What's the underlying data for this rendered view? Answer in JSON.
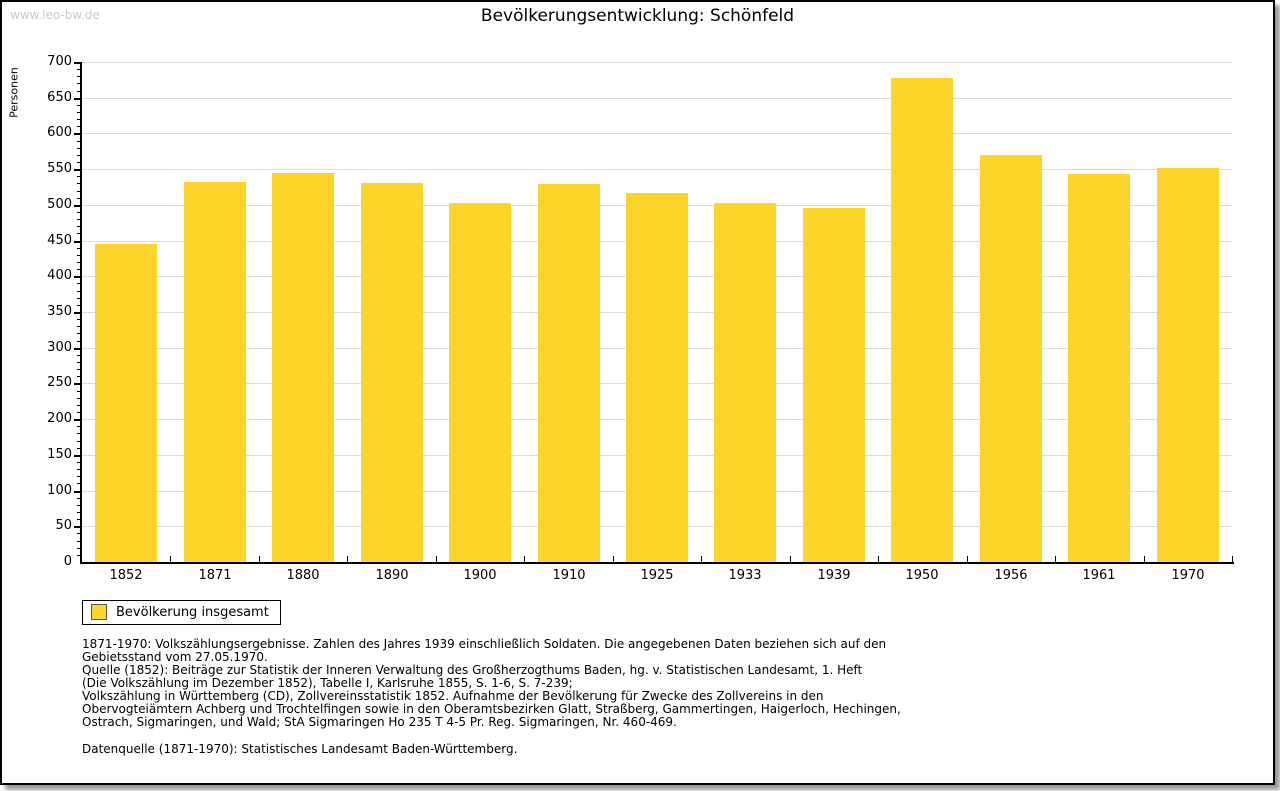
{
  "watermark": "www.leo-bw.de",
  "title": "Bevölkerungsentwicklung: Schönfeld",
  "chart_data": {
    "type": "bar",
    "title": "Bevölkerungsentwicklung: Schönfeld",
    "categories": [
      "1852",
      "1871",
      "1880",
      "1890",
      "1900",
      "1910",
      "1925",
      "1933",
      "1939",
      "1950",
      "1956",
      "1961",
      "1970"
    ],
    "values": [
      445,
      532,
      544,
      530,
      502,
      529,
      516,
      502,
      496,
      678,
      570,
      543,
      551
    ],
    "xlabel": "",
    "ylabel": "Personen",
    "ylim": [
      0,
      700
    ],
    "ytick_step": 50,
    "yminor_step": 10,
    "grid": true,
    "grid_color": "#dcdcdc",
    "bar_color": "#fcd42a",
    "legend_position": "bottom-left",
    "series": [
      {
        "name": "Bevölkerung insgesamt",
        "color": "#fcd42a"
      }
    ]
  },
  "legend": {
    "label": "Bevölkerung insgesamt",
    "swatch_color": "#fcd42a"
  },
  "footnotes": [
    "1871-1970: Volkszählungsergebnisse. Zahlen des Jahres 1939 einschließlich Soldaten. Die angegebenen Daten beziehen sich auf den",
    "Gebietsstand vom 27.05.1970.",
    "Quelle (1852): Beiträge zur Statistik der Inneren Verwaltung des Großherzogthums Baden, hg. v. Statistischen Landesamt, 1. Heft",
    "(Die Volkszählung im Dezember 1852), Tabelle I, Karlsruhe 1855, S. 1-6, S. 7-239;",
    "Volkszählung in Württemberg (CD), Zollvereinsstatistik 1852. Aufnahme der Bevölkerung für Zwecke des Zollvereins in den",
    "Obervogteiämtern Achberg und Trochtelfingen sowie in den Oberamtsbezirken Glatt, Straßberg, Gammertingen, Haigerloch, Hechingen,",
    "Ostrach, Sigmaringen, und Wald; StA Sigmaringen Ho 235 T 4-5 Pr. Reg. Sigmaringen, Nr. 460-469."
  ],
  "datasource": "Datenquelle (1871-1970): Statistisches Landesamt Baden-Württemberg."
}
